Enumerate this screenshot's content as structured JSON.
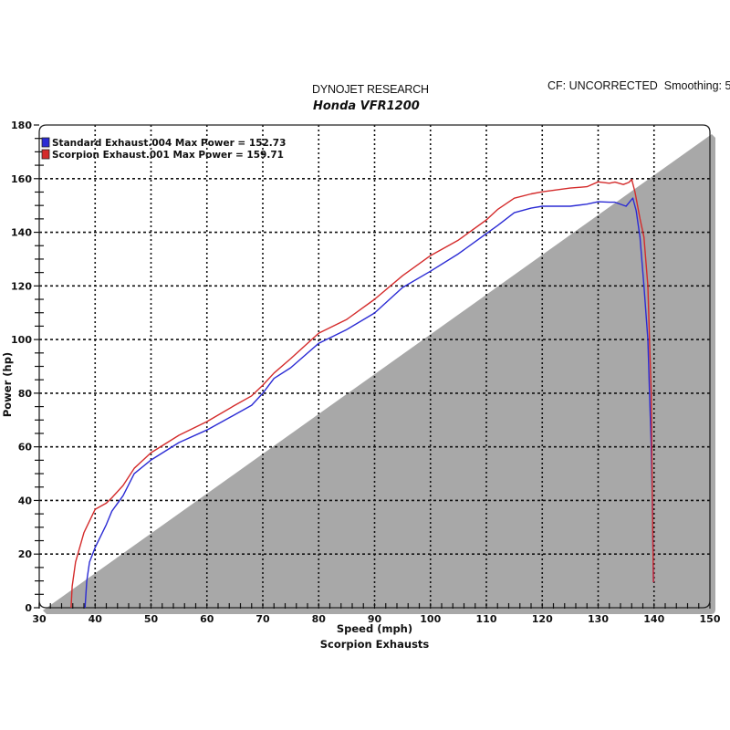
{
  "header": {
    "brand": "DYNOJET RESEARCH",
    "model": "Honda VFR1200",
    "correction": "CF: UNCORRECTED  Smoothing: 5"
  },
  "colors": {
    "standard": "#2b2bd4",
    "scorpion": "#d42b2b",
    "grid": "#111111",
    "frame": "#222222",
    "shadow": "#a8a8a8"
  },
  "chart_data": {
    "type": "line",
    "title": "Honda VFR1200",
    "subtitle": "DYNOJET RESEARCH",
    "annotation": "CF: UNCORRECTED  Smoothing: 5",
    "xlabel": "Speed (mph)",
    "ylabel": "Power (hp)",
    "footer": "Scorpion Exhausts",
    "xlim": [
      30,
      150
    ],
    "ylim": [
      0,
      180
    ],
    "xticks": [
      30,
      40,
      50,
      60,
      70,
      80,
      90,
      100,
      110,
      120,
      130,
      140,
      150
    ],
    "yticks": [
      0,
      20,
      40,
      60,
      80,
      100,
      120,
      140,
      160,
      180
    ],
    "grid": true,
    "legend_position": "top-left",
    "series": [
      {
        "name": "Standard Exhaust.004 Max Power = 152.73",
        "label": "Standard Exhaust.004",
        "max_power": 152.73,
        "color": "#2b2bd4",
        "x": [
          38.2,
          38.5,
          39,
          40,
          42,
          43,
          45,
          47,
          50,
          55,
          60,
          65,
          68,
          70,
          72,
          75,
          80,
          85,
          90,
          95,
          100,
          105,
          110,
          112,
          115,
          118,
          120,
          125,
          128,
          130,
          132,
          133,
          135,
          136.2,
          136.8,
          137.5,
          138.2,
          138.9,
          139.2,
          139.5,
          139.7,
          139.9
        ],
        "y": [
          0,
          10,
          17,
          22.5,
          31,
          36,
          41.8,
          50,
          55.1,
          61.6,
          66.3,
          72,
          75.5,
          80,
          85.5,
          89.5,
          98.6,
          103.7,
          109.9,
          119.4,
          125.5,
          132,
          139.5,
          142.5,
          147.3,
          149,
          149.7,
          149.7,
          150.5,
          151.4,
          151.2,
          151.2,
          149.7,
          152.73,
          148,
          138,
          120,
          100,
          80,
          60,
          40,
          9.5
        ]
      },
      {
        "name": "Scorpion Exhaust.001 Max Power = 159.71",
        "label": "Scorpion Exhaust.001",
        "max_power": 159.71,
        "color": "#d42b2b",
        "x": [
          35.7,
          35.9,
          36.5,
          38,
          40,
          42,
          43,
          45,
          47,
          50,
          55,
          60,
          65,
          68,
          70,
          72,
          75,
          80,
          85,
          90,
          95,
          100,
          105,
          110,
          112,
          115,
          118,
          120,
          125,
          128,
          130,
          132,
          133,
          134.5,
          135.5,
          136,
          136.6,
          137.5,
          138.2,
          138.9,
          139.2,
          139.5,
          139.7,
          139.9
        ],
        "y": [
          0,
          8,
          17,
          28,
          36.7,
          39,
          41,
          45.6,
          52,
          57.8,
          64.3,
          69.4,
          75.5,
          79,
          83,
          87.5,
          92.9,
          102.4,
          107.5,
          115,
          123.8,
          131.3,
          137.1,
          144.6,
          148.5,
          152.7,
          154.3,
          155.1,
          156.5,
          157,
          158.8,
          158.3,
          158.7,
          157.8,
          158.6,
          159.71,
          155,
          145,
          138.2,
          120,
          100,
          80,
          40,
          9.5
        ]
      }
    ]
  }
}
